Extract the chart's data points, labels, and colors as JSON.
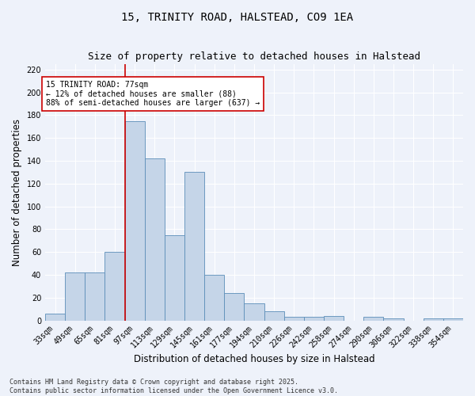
{
  "title": "15, TRINITY ROAD, HALSTEAD, CO9 1EA",
  "subtitle": "Size of property relative to detached houses in Halstead",
  "xlabel": "Distribution of detached houses by size in Halstead",
  "ylabel": "Number of detached properties",
  "footer": "Contains HM Land Registry data © Crown copyright and database right 2025.\nContains public sector information licensed under the Open Government Licence v3.0.",
  "bar_labels": [
    "33sqm",
    "49sqm",
    "65sqm",
    "81sqm",
    "97sqm",
    "113sqm",
    "129sqm",
    "145sqm",
    "161sqm",
    "177sqm",
    "194sqm",
    "210sqm",
    "226sqm",
    "242sqm",
    "258sqm",
    "274sqm",
    "290sqm",
    "306sqm",
    "322sqm",
    "338sqm",
    "354sqm"
  ],
  "bar_values": [
    6,
    42,
    42,
    60,
    175,
    142,
    75,
    130,
    40,
    24,
    15,
    8,
    3,
    3,
    4,
    0,
    3,
    2,
    0,
    2,
    2
  ],
  "bar_color": "#c5d5e8",
  "bar_edge_color": "#5b8db8",
  "vline_index": 3.5,
  "vline_color": "#cc0000",
  "annotation_text": "15 TRINITY ROAD: 77sqm\n← 12% of detached houses are smaller (88)\n88% of semi-detached houses are larger (637) →",
  "annotation_box_facecolor": "#ffffff",
  "annotation_border_color": "#cc0000",
  "ylim": [
    0,
    225
  ],
  "yticks": [
    0,
    20,
    40,
    60,
    80,
    100,
    120,
    140,
    160,
    180,
    200,
    220
  ],
  "background_color": "#eef2fa",
  "grid_color": "#ffffff",
  "title_fontsize": 10,
  "subtitle_fontsize": 9,
  "axis_label_fontsize": 8.5,
  "tick_fontsize": 7,
  "footer_fontsize": 6,
  "annot_fontsize": 7
}
